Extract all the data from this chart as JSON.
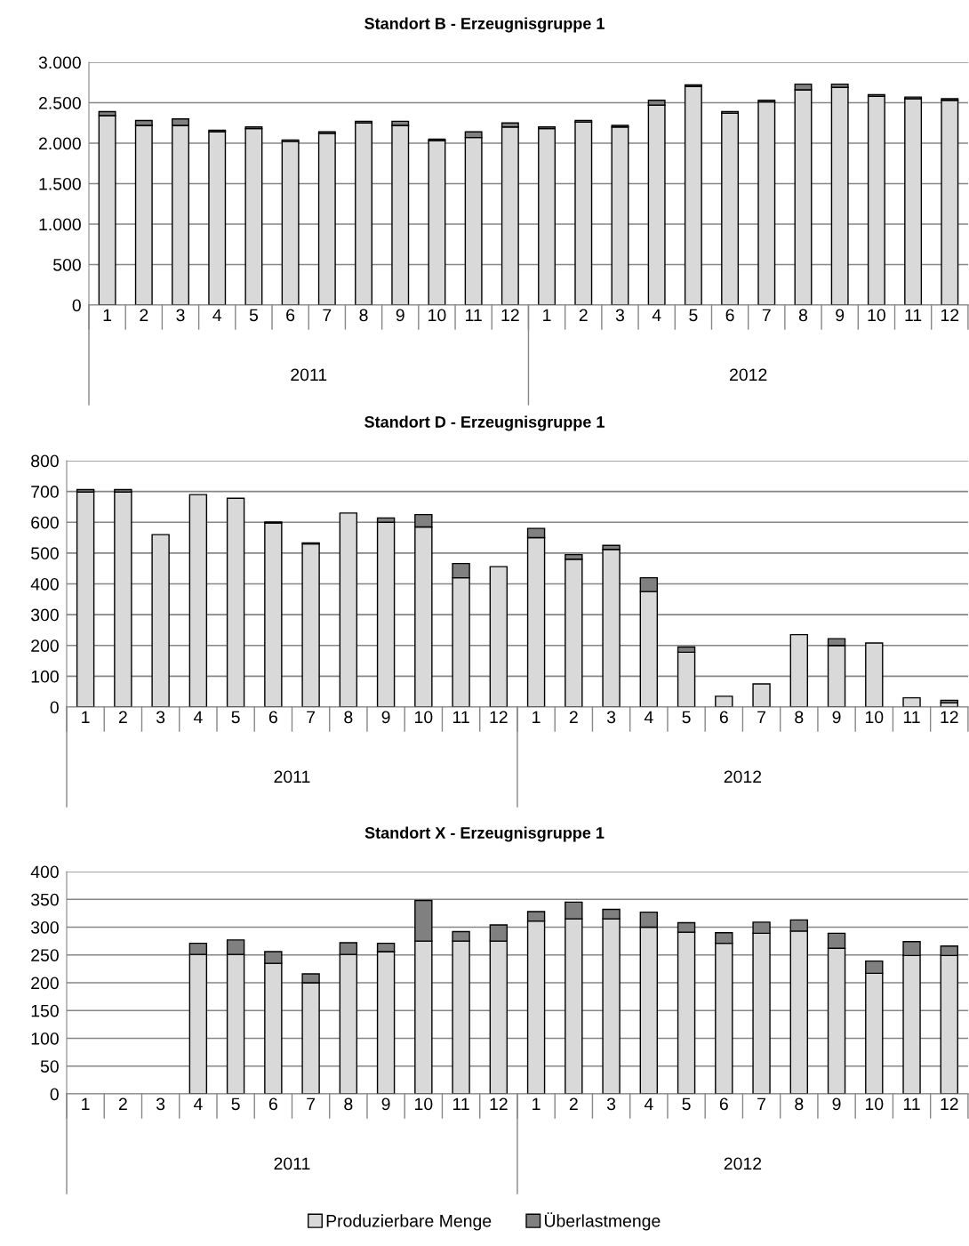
{
  "chart_data": [
    {
      "type": "bar",
      "stacked": true,
      "title": "Standort B - Erzeugnisgruppe 1",
      "categories": [
        "1",
        "2",
        "3",
        "4",
        "5",
        "6",
        "7",
        "8",
        "9",
        "10",
        "11",
        "12",
        "1",
        "2",
        "3",
        "4",
        "5",
        "6",
        "7",
        "8",
        "9",
        "10",
        "11",
        "12"
      ],
      "annotations": [
        "2011",
        "2012"
      ],
      "series": [
        {
          "color": "#d9d9d9",
          "values": [
            2340,
            2220,
            2220,
            2140,
            2180,
            2020,
            2120,
            2250,
            2220,
            2030,
            2070,
            2200,
            2180,
            2260,
            2200,
            2470,
            2700,
            2370,
            2510,
            2660,
            2690,
            2580,
            2550,
            2530
          ]
        },
        {
          "color": "#808080",
          "values": [
            50,
            60,
            80,
            20,
            20,
            20,
            20,
            20,
            50,
            20,
            70,
            50,
            20,
            20,
            20,
            60,
            20,
            20,
            20,
            70,
            40,
            20,
            20,
            20
          ]
        }
      ],
      "ylim": [
        0,
        3000
      ],
      "yticks": [
        0,
        500,
        {
          "value": 1000,
          "label": "1.000"
        },
        {
          "value": 1500,
          "label": "1.500"
        },
        {
          "value": 2000,
          "label": "2.000"
        },
        {
          "value": 2500,
          "label": "2.500"
        },
        {
          "value": 3000,
          "label": "3.000"
        }
      ],
      "grid": "y",
      "legend": false
    },
    {
      "type": "bar",
      "stacked": true,
      "title": "Standort D - Erzeugnisgruppe 1",
      "categories": [
        "1",
        "2",
        "3",
        "4",
        "5",
        "6",
        "7",
        "8",
        "9",
        "10",
        "11",
        "12",
        "1",
        "2",
        "3",
        "4",
        "5",
        "6",
        "7",
        "8",
        "9",
        "10",
        "11",
        "12"
      ],
      "annotations": [
        "2011",
        "2012"
      ],
      "series": [
        {
          "color": "#d9d9d9",
          "values": [
            698,
            698,
            560,
            690,
            678,
            598,
            530,
            630,
            600,
            585,
            420,
            456,
            550,
            480,
            512,
            375,
            178,
            35,
            75,
            235,
            200,
            208,
            30,
            14
          ]
        },
        {
          "color": "#808080",
          "values": [
            8,
            8,
            null,
            null,
            null,
            3,
            3,
            null,
            14,
            40,
            46,
            null,
            30,
            15,
            13,
            45,
            17,
            null,
            null,
            null,
            22,
            null,
            null,
            8
          ]
        }
      ],
      "ylim": [
        0,
        800
      ],
      "yticks": [
        0,
        100,
        200,
        300,
        400,
        500,
        600,
        700,
        800
      ],
      "grid": "y",
      "legend": false
    },
    {
      "type": "bar",
      "stacked": true,
      "title": "Standort X - Erzeugnisgruppe 1",
      "categories": [
        "1",
        "2",
        "3",
        "4",
        "5",
        "6",
        "7",
        "8",
        "9",
        "10",
        "11",
        "12",
        "1",
        "2",
        "3",
        "4",
        "5",
        "6",
        "7",
        "8",
        "9",
        "10",
        "11",
        "12"
      ],
      "annotations": [
        "2011",
        "2012"
      ],
      "series": [
        {
          "name": "Produzierbare Menge",
          "color": "#d9d9d9",
          "values": [
            null,
            null,
            null,
            251,
            251,
            235,
            200,
            251,
            256,
            275,
            275,
            275,
            311,
            315,
            315,
            300,
            291,
            271,
            289,
            293,
            262,
            217,
            249,
            249
          ]
        },
        {
          "name": "Überlastmenge",
          "color": "#808080",
          "values": [
            null,
            null,
            null,
            20,
            26,
            21,
            16,
            21,
            15,
            73,
            17,
            29,
            17,
            30,
            17,
            27,
            17,
            19,
            20,
            20,
            27,
            22,
            25,
            17
          ]
        }
      ],
      "ylim": [
        0,
        400
      ],
      "yticks": [
        0,
        50,
        100,
        150,
        200,
        250,
        300,
        350,
        400
      ],
      "grid": "y",
      "legend": "bottom"
    }
  ]
}
